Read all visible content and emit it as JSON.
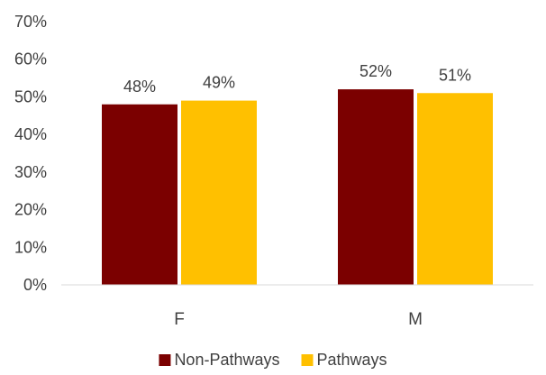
{
  "chart_data": {
    "type": "bar",
    "title": "",
    "xlabel": "",
    "ylabel": "",
    "categories": [
      "F",
      "M"
    ],
    "series": [
      {
        "name": "Non-Pathways",
        "color": "#7B0000",
        "values": [
          48,
          52
        ],
        "labels": [
          "48%",
          "52%"
        ]
      },
      {
        "name": "Pathways",
        "color": "#FFC000",
        "values": [
          49,
          51
        ],
        "labels": [
          "49%",
          "51%"
        ]
      }
    ],
    "ylim": [
      0,
      70
    ],
    "yticks": [
      0,
      10,
      20,
      30,
      40,
      50,
      60,
      70
    ],
    "ytick_labels": [
      "0%",
      "10%",
      "20%",
      "30%",
      "40%",
      "50%",
      "60%",
      "70%"
    ],
    "grid": false,
    "legend_position": "bottom"
  }
}
